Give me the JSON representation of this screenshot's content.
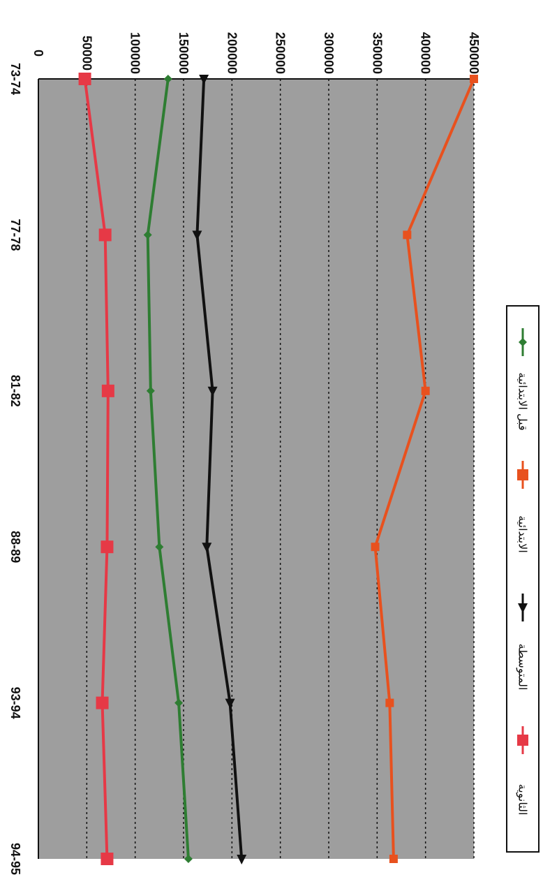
{
  "chart_data": {
    "type": "line",
    "title": "",
    "xlabel": "",
    "ylabel": "",
    "categories": [
      "73-74",
      "77-78",
      "81-82",
      "88-89",
      "93-94",
      "94-95"
    ],
    "ylim": [
      0,
      450000
    ],
    "yticks": [
      "0",
      "50000",
      "100000",
      "150000",
      "200000",
      "250000",
      "300000",
      "350000",
      "400000",
      "450000"
    ],
    "grid": true,
    "legend_position": "right",
    "series": [
      {
        "name": "قبل الابتدائية",
        "color": "#2e7d32",
        "marker": "diamond",
        "values": [
          134000,
          113000,
          116000,
          125000,
          145000,
          155000
        ]
      },
      {
        "name": "الابتدائية",
        "color": "#e8511e",
        "marker": "square",
        "values": [
          450000,
          381000,
          400000,
          348000,
          363000,
          367000
        ]
      },
      {
        "name": "المتوسطة",
        "color": "#111111",
        "marker": "triangle",
        "values": [
          171000,
          164000,
          180000,
          174000,
          198000,
          210000
        ]
      },
      {
        "name": "الثانوية",
        "color": "#e63946",
        "marker": "square",
        "values": [
          48000,
          69000,
          72000,
          71000,
          66000,
          71000
        ]
      }
    ]
  }
}
